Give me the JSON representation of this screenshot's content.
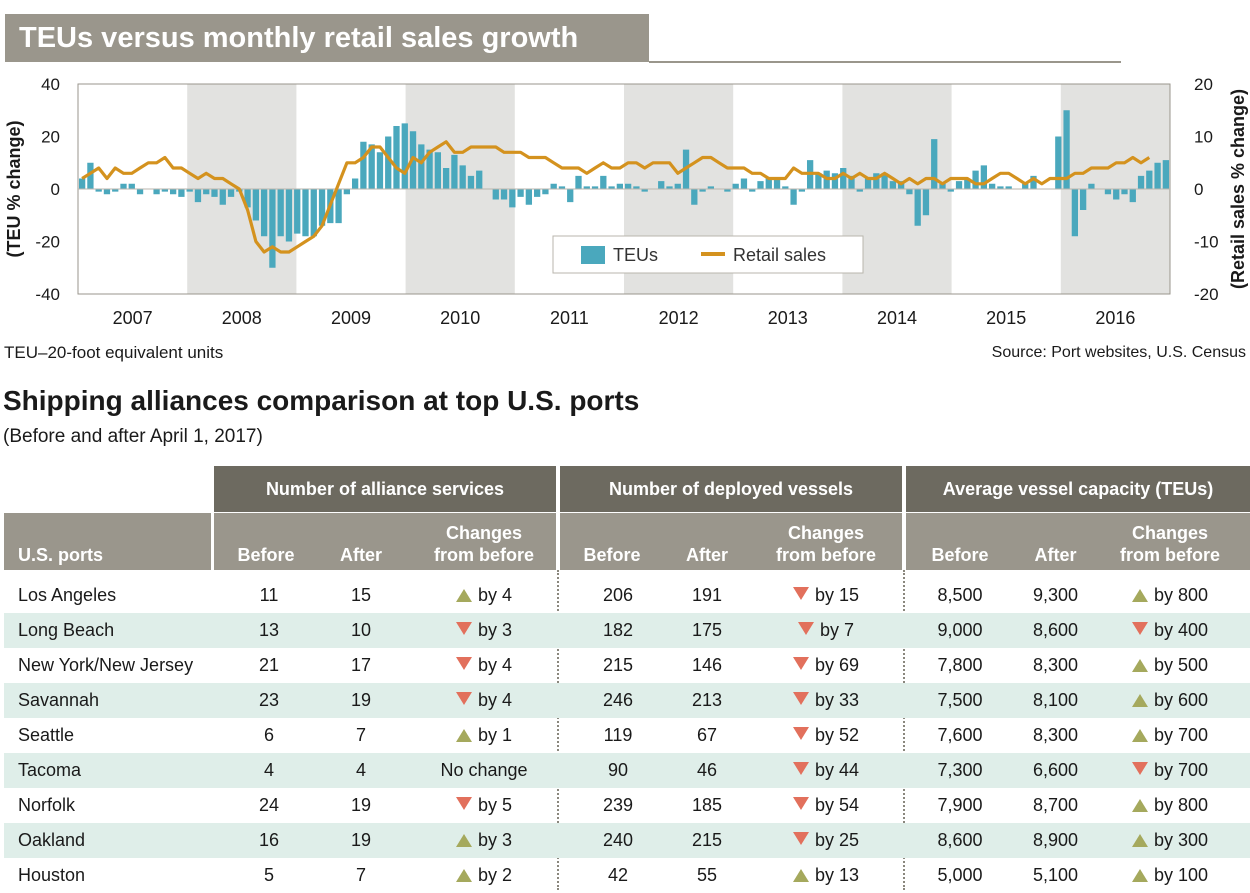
{
  "title": "TEUs versus monthly retail sales growth",
  "chart_data": {
    "type": "bar+line",
    "title": "TEUs versus monthly retail sales growth",
    "ylabel_left": "(TEU % change)",
    "ylabel_right": "(Retail sales % change)",
    "ylim_left": [
      -40,
      40
    ],
    "ylim_right": [
      -20,
      20
    ],
    "yticks_left": [
      "40",
      "20",
      "0",
      "-20",
      "-40"
    ],
    "yticks_right": [
      "20",
      "10",
      "0",
      "-10",
      "-20"
    ],
    "years": [
      "2007",
      "2008",
      "2009",
      "2010",
      "2011",
      "2012",
      "2013",
      "2014",
      "2015",
      "2016"
    ],
    "shaded_years": [
      "2008",
      "2010",
      "2012",
      "2014",
      "2016"
    ],
    "legend": {
      "bars": "TEUs",
      "line": "Retail sales",
      "placement": "bottom-center"
    },
    "series": [
      {
        "name": "TEUs",
        "type": "bar",
        "axis": "left",
        "color": "#4aa8bd",
        "values": [
          4,
          10,
          -1,
          -2,
          -1,
          2,
          2,
          -2,
          0,
          -2,
          -1,
          -2,
          -3,
          -1,
          -5,
          -2,
          -3,
          -6,
          -3,
          -1,
          -7,
          -12,
          -18,
          -30,
          -18,
          -20,
          -17,
          -18,
          -18,
          -14,
          -13,
          -13,
          -2,
          4,
          18,
          17,
          14,
          20,
          24,
          25,
          22,
          17,
          15,
          14,
          8,
          13,
          9,
          5,
          7,
          0,
          -4,
          -4,
          -7,
          -3,
          -6,
          -3,
          -2,
          2,
          1,
          -5,
          5,
          1,
          1,
          5,
          1,
          2,
          2,
          1,
          -1,
          0,
          3,
          1,
          2,
          15,
          -6,
          -1,
          1,
          0,
          -1,
          2,
          4,
          -1,
          3,
          4,
          4,
          1,
          -6,
          -1,
          11,
          6,
          7,
          6,
          8,
          5,
          -1,
          4,
          6,
          6,
          3,
          3,
          -2,
          -14,
          -10,
          19,
          2,
          -1,
          3,
          4,
          7,
          9,
          2,
          1,
          1,
          0,
          2,
          5,
          0,
          0,
          20,
          30,
          -18,
          -8,
          2,
          0,
          -2,
          -4,
          -2,
          -5,
          5,
          7,
          10,
          11
        ]
      },
      {
        "name": "Retail sales",
        "type": "line",
        "axis": "right",
        "color": "#d4921e",
        "values": [
          2,
          3,
          4,
          2,
          4,
          3,
          3,
          4,
          5,
          5,
          6,
          4,
          4,
          3,
          2,
          3,
          2,
          2,
          1,
          0,
          -4,
          -10,
          -12,
          -11,
          -12,
          -12,
          -11,
          -10,
          -9,
          -7,
          -3,
          1,
          5,
          5,
          6,
          8,
          8,
          6,
          4,
          3,
          6,
          5,
          7,
          8,
          9,
          7,
          7,
          8,
          8,
          8,
          8,
          7,
          7,
          7,
          6,
          6,
          6,
          5,
          4,
          4,
          4,
          3,
          4,
          5,
          4,
          4,
          5,
          5,
          4,
          5,
          5,
          5,
          3,
          4,
          5,
          6,
          6,
          5,
          4,
          4,
          4,
          3,
          3,
          2,
          2,
          2,
          4,
          3,
          3,
          3,
          2,
          2,
          3,
          2,
          3,
          2,
          2,
          3,
          2,
          1,
          2,
          1,
          2,
          2,
          1,
          2,
          2,
          2,
          1,
          1,
          2,
          3,
          3,
          2,
          1,
          2,
          1,
          2,
          2,
          2,
          3,
          3,
          4,
          4,
          4,
          5,
          5,
          6,
          5,
          6
        ]
      }
    ]
  },
  "notes": {
    "teu": "TEU–20-foot equivalent units",
    "source": "Source: Port websites, U.S. Census"
  },
  "table_title": "Shipping alliances comparison at top U.S. ports",
  "table_subtitle": "(Before and after April 1, 2017)",
  "table": {
    "groups": [
      "Number of alliance services",
      "Number of deployed vessels",
      "Average vessel capacity (TEUs)"
    ],
    "columns": {
      "port": "U.S. ports",
      "before": "Before",
      "after": "After",
      "change_line1": "Changes",
      "change_line2": "from before"
    },
    "rows": [
      {
        "port": "Los Angeles",
        "s_before": "11",
        "s_after": "15",
        "s_dir": "up",
        "s_change": "by 4",
        "v_before": "206",
        "v_after": "191",
        "v_dir": "down",
        "v_change": "by 15",
        "c_before": "8,500",
        "c_after": "9,300",
        "c_dir": "up",
        "c_change": "by 800"
      },
      {
        "port": "Long Beach",
        "s_before": "13",
        "s_after": "10",
        "s_dir": "down",
        "s_change": "by 3",
        "v_before": "182",
        "v_after": "175",
        "v_dir": "down",
        "v_change": "by 7",
        "c_before": "9,000",
        "c_after": "8,600",
        "c_dir": "down",
        "c_change": "by 400"
      },
      {
        "port": "New York/New Jersey",
        "s_before": "21",
        "s_after": "17",
        "s_dir": "down",
        "s_change": "by 4",
        "v_before": "215",
        "v_after": "146",
        "v_dir": "down",
        "v_change": "by 69",
        "c_before": "7,800",
        "c_after": "8,300",
        "c_dir": "up",
        "c_change": "by 500"
      },
      {
        "port": "Savannah",
        "s_before": "23",
        "s_after": "19",
        "s_dir": "down",
        "s_change": "by 4",
        "v_before": "246",
        "v_after": "213",
        "v_dir": "down",
        "v_change": "by 33",
        "c_before": "7,500",
        "c_after": "8,100",
        "c_dir": "up",
        "c_change": "by 600"
      },
      {
        "port": "Seattle",
        "s_before": "6",
        "s_after": "7",
        "s_dir": "up",
        "s_change": "by 1",
        "v_before": "119",
        "v_after": "67",
        "v_dir": "down",
        "v_change": "by 52",
        "c_before": "7,600",
        "c_after": "8,300",
        "c_dir": "up",
        "c_change": "by 700"
      },
      {
        "port": "Tacoma",
        "s_before": "4",
        "s_after": "4",
        "s_dir": "none",
        "s_change": "No change",
        "v_before": "90",
        "v_after": "46",
        "v_dir": "down",
        "v_change": "by 44",
        "c_before": "7,300",
        "c_after": "6,600",
        "c_dir": "down",
        "c_change": "by 700"
      },
      {
        "port": "Norfolk",
        "s_before": "24",
        "s_after": "19",
        "s_dir": "down",
        "s_change": "by 5",
        "v_before": "239",
        "v_after": "185",
        "v_dir": "down",
        "v_change": "by 54",
        "c_before": "7,900",
        "c_after": "8,700",
        "c_dir": "up",
        "c_change": "by 800"
      },
      {
        "port": "Oakland",
        "s_before": "16",
        "s_after": "19",
        "s_dir": "up",
        "s_change": "by 3",
        "v_before": "240",
        "v_after": "215",
        "v_dir": "down",
        "v_change": "by 25",
        "c_before": "8,600",
        "c_after": "8,900",
        "c_dir": "up",
        "c_change": "by 300"
      },
      {
        "port": "Houston",
        "s_before": "5",
        "s_after": "7",
        "s_dir": "up",
        "s_change": "by 2",
        "v_before": "42",
        "v_after": "55",
        "v_dir": "up",
        "v_change": "by 13",
        "c_before": "5,000",
        "c_after": "5,100",
        "c_dir": "up",
        "c_change": "by 100"
      }
    ]
  }
}
